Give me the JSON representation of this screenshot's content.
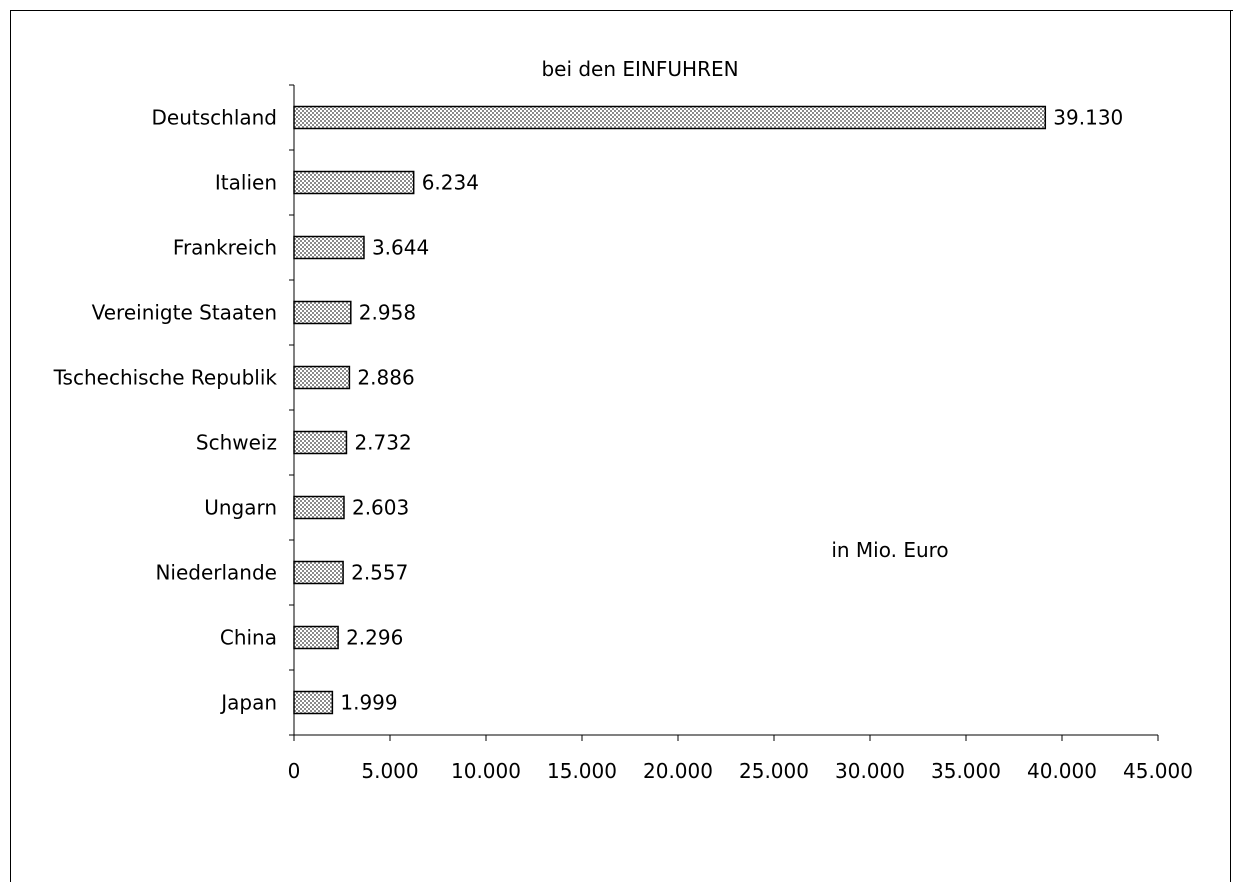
{
  "chart_data": {
    "type": "bar",
    "orientation": "horizontal",
    "title": "bei den EINFUHREN",
    "annotation": "in Mio. Euro",
    "categories": [
      "Deutschland",
      "Italien",
      "Frankreich",
      "Vereinigte Staaten",
      "Tschechische Republik",
      "Schweiz",
      "Ungarn",
      "Niederlande",
      "China",
      "Japan"
    ],
    "values": [
      39130,
      6234,
      3644,
      2958,
      2886,
      2732,
      2603,
      2557,
      2296,
      1999
    ],
    "data_labels": [
      "39.130",
      "6.234",
      "3.644",
      "2.958",
      "2.886",
      "2.732",
      "2.603",
      "2.557",
      "2.296",
      "1.999"
    ],
    "xlim": [
      0,
      45000
    ],
    "xticks": [
      0,
      5000,
      10000,
      15000,
      20000,
      25000,
      30000,
      35000,
      40000,
      45000
    ],
    "xtick_labels": [
      "0",
      "5.000",
      "10.000",
      "15.000",
      "20.000",
      "25.000",
      "30.000",
      "35.000",
      "40.000",
      "45.000"
    ],
    "grid": false,
    "bar_fill": "hatched-grey",
    "colors": {
      "bar_stroke": "#000000",
      "bar_pattern": "#808080",
      "background": "#ffffff"
    }
  }
}
